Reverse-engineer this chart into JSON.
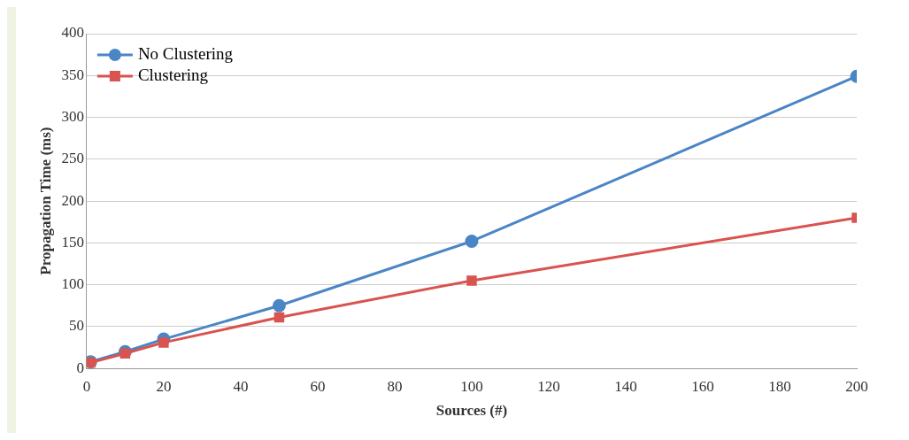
{
  "chart_data": {
    "type": "line",
    "xlabel": "Sources (#)",
    "ylabel": "Propagation Time (ms)",
    "xlim": [
      0,
      200
    ],
    "xticks": [
      0,
      20,
      40,
      60,
      80,
      100,
      120,
      140,
      160,
      180,
      200
    ],
    "ylim": [
      0,
      400
    ],
    "yticks": [
      0,
      50,
      100,
      150,
      200,
      250,
      300,
      350,
      400
    ],
    "grid": "y",
    "legend": "top left",
    "series": [
      {
        "name": "No Clustering",
        "color": "#4a86c5",
        "marker": "circle",
        "x": [
          1,
          10,
          20,
          50,
          100,
          200
        ],
        "values": [
          8,
          20,
          35,
          75,
          152,
          349
        ]
      },
      {
        "name": "Clustering",
        "color": "#d9534f",
        "marker": "square",
        "x": [
          1,
          10,
          20,
          50,
          100,
          200
        ],
        "values": [
          7,
          18,
          31,
          61,
          105,
          180
        ]
      }
    ]
  }
}
